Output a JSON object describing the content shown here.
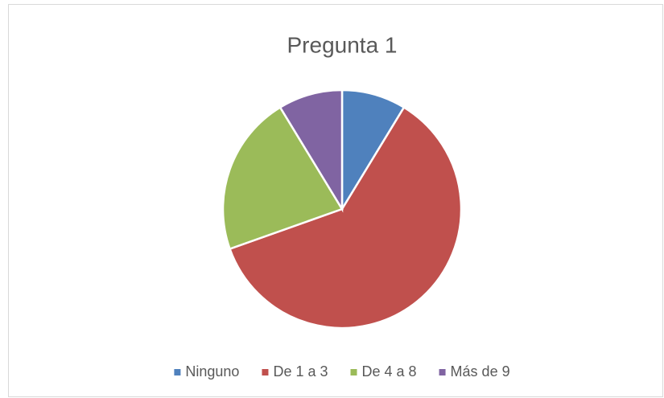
{
  "chart_data": {
    "type": "pie",
    "title": "Pregunta 1",
    "categories": [
      "Ninguno",
      "De 1 a 3",
      "De 4 a 8",
      "Más de 9"
    ],
    "values": [
      4,
      28,
      10,
      4
    ],
    "colors": [
      "#4f81bd",
      "#c0504d",
      "#9bbb59",
      "#8064a2"
    ],
    "legend": "bottom"
  }
}
